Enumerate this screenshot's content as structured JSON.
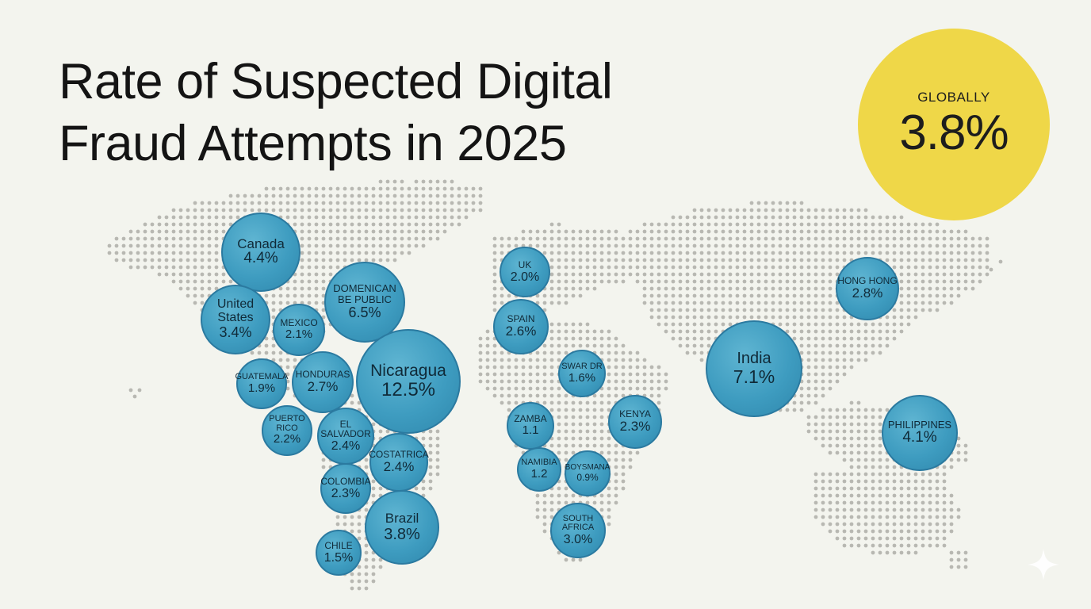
{
  "title": {
    "line1": "Rate of Suspected Digital",
    "line2": "Fraud Attempts in 2025"
  },
  "global": {
    "label": "GLOBALLY",
    "value": "3.8%"
  },
  "colors": {
    "bubble": "#3e9cc0",
    "badge": "#efd748",
    "dots": "#b8b8b2",
    "background": "#f3f4ee"
  },
  "countries": [
    {
      "id": "canada",
      "name": "Canada",
      "value": "4.4%",
      "rate": 4.4
    },
    {
      "id": "united-states",
      "name": "United\nStates",
      "value": "3.4%",
      "rate": 3.4
    },
    {
      "id": "mexico",
      "name": "MEXICO",
      "value": "2.1%",
      "rate": 2.1
    },
    {
      "id": "domenican-be-public",
      "name": "DOMENICAN\nBE PUBLIC",
      "value": "6.5%",
      "rate": 6.5
    },
    {
      "id": "nicaragua",
      "name": "Nicaragua",
      "value": "12.5%",
      "rate": 12.5
    },
    {
      "id": "guatemala",
      "name": "GUATEMALA",
      "value": "1.9%",
      "rate": 1.9
    },
    {
      "id": "honduras",
      "name": "HONDURAS",
      "value": "2.7%",
      "rate": 2.7
    },
    {
      "id": "puerto-rico",
      "name": "PUERTO\nRICO",
      "value": "2.2%",
      "rate": 2.2
    },
    {
      "id": "el-salvador",
      "name": "EL\nSALVADOR",
      "value": "2.4%",
      "rate": 2.4
    },
    {
      "id": "costatrica",
      "name": "COSTATRICA",
      "value": "2.4%",
      "rate": 2.4
    },
    {
      "id": "colombia",
      "name": "COLOMBIA",
      "value": "2.3%",
      "rate": 2.3
    },
    {
      "id": "brazil",
      "name": "Brazil",
      "value": "3.8%",
      "rate": 3.8
    },
    {
      "id": "chile",
      "name": "CHILE",
      "value": "1.5%",
      "rate": 1.5
    },
    {
      "id": "uk",
      "name": "UK",
      "value": "2.0%",
      "rate": 2.0
    },
    {
      "id": "spain",
      "name": "SPAIN",
      "value": "2.6%",
      "rate": 2.6
    },
    {
      "id": "swar-dr",
      "name": "SWAR DR",
      "value": "1.6%",
      "rate": 1.6
    },
    {
      "id": "zamba",
      "name": "ZAMBA",
      "value": "1.1",
      "rate": 1.1
    },
    {
      "id": "kenya",
      "name": "KENYA",
      "value": "2.3%",
      "rate": 2.3
    },
    {
      "id": "namibia",
      "name": "NAMIBIA",
      "value": "1.2",
      "rate": 1.2
    },
    {
      "id": "boysmana",
      "name": "BOYSMANA",
      "value": "0.9%",
      "rate": 0.9
    },
    {
      "id": "south-africa",
      "name": "SOUTH\nAFRICA",
      "value": "3.0%",
      "rate": 3.0
    },
    {
      "id": "india",
      "name": "India",
      "value": "7.1%",
      "rate": 7.1
    },
    {
      "id": "hong-hong",
      "name": "HONG HONG",
      "value": "2.8%",
      "rate": 2.8
    },
    {
      "id": "philippines",
      "name": "PHILIPPINES",
      "value": "4.1%",
      "rate": 4.1
    }
  ]
}
